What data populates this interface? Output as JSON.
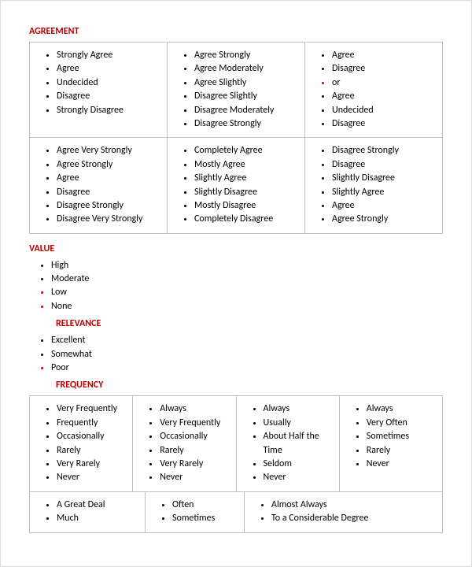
{
  "colors": {
    "heading": "#c00000",
    "text": "#000000",
    "cell_border": "#bfbfbf",
    "page_bg": "#ffffff"
  },
  "typography": {
    "font_family": "Calibri, Arial, sans-serif",
    "body_fontsize": 12,
    "heading_fontsize": 12,
    "heading_weight": "bold"
  },
  "sections": {
    "agreement": {
      "title": "AGREEMENT",
      "table": {
        "rows": 2,
        "cols": 3,
        "cells": [
          [
            {
              "items": [
                "Strongly Agree",
                "Agree",
                "Undecided",
                "Disagree",
                "Strongly Disagree"
              ]
            },
            {
              "items": [
                "Agree Strongly",
                "Agree Moderately",
                "Agree Slightly",
                "Disagree Slightly",
                "Disagree Moderately",
                "Disagree Strongly"
              ]
            },
            {
              "items": [
                "Agree",
                "Disagree",
                "or",
                "Agree",
                "Undecided",
                "Disagree"
              ],
              "red_bullets": [
                2
              ]
            }
          ],
          [
            {
              "items": [
                "Agree Very Strongly",
                "Agree Strongly",
                "Agree",
                "Disagree",
                "Disagree Strongly",
                "Disagree Very Strongly"
              ]
            },
            {
              "items": [
                "Completely Agree",
                "Mostly Agree",
                "Slightly Agree",
                "Slightly Disagree",
                "Mostly Disagree",
                "Completely Disagree"
              ]
            },
            {
              "items": [
                "Disagree Strongly",
                "Disagree",
                "Slightly Disagree",
                "Slightly Agree",
                "Agree",
                "Agree Strongly"
              ]
            }
          ]
        ]
      }
    },
    "value": {
      "title": "VALUE",
      "items": [
        "High",
        "Moderate",
        "Low",
        "None"
      ],
      "red_bullets": [
        2,
        3
      ]
    },
    "relevance": {
      "title": "RELEVANCE",
      "items": [
        "Excellent",
        "Somewhat",
        "Poor"
      ],
      "red_bullets": [
        2
      ]
    },
    "frequency": {
      "title": "FREQUENCY",
      "table1": {
        "rows": 1,
        "cols": 4,
        "cells": [
          [
            {
              "items": [
                "Very Frequently",
                "Frequently",
                "Occasionally",
                "Rarely",
                "Very Rarely",
                "Never"
              ]
            },
            {
              "items": [
                "Always",
                "Very Frequently",
                "Occasionally",
                "Rarely",
                "Very Rarely",
                "Never"
              ]
            },
            {
              "items": [
                "Always",
                "Usually",
                "About Half the Time",
                "Seldom",
                "Never"
              ]
            },
            {
              "items": [
                "Always",
                "Very Often",
                "Sometimes",
                "Rarely",
                "Never"
              ]
            }
          ]
        ]
      },
      "table2": {
        "rows": 1,
        "cols": 3,
        "col_widths": [
          "28%",
          "24%",
          "48%"
        ],
        "cells": [
          [
            {
              "items": [
                "A Great Deal",
                "Much"
              ]
            },
            {
              "items": [
                "Often",
                "Sometimes"
              ]
            },
            {
              "items": [
                "Almost Always",
                "To a Considerable Degree"
              ]
            }
          ]
        ]
      }
    }
  }
}
